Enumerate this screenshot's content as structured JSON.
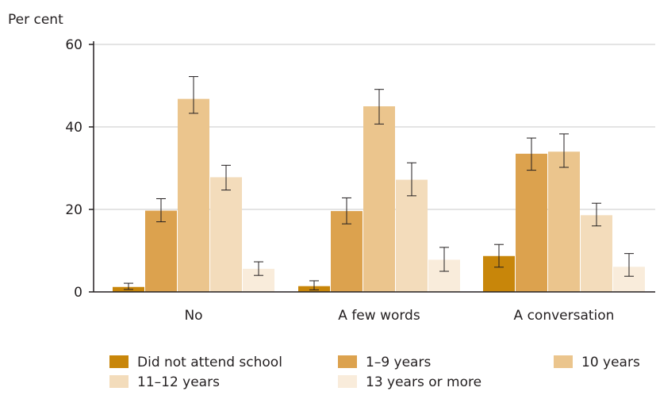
{
  "chart_data": {
    "type": "bar",
    "title": "",
    "xlabel": "",
    "ylabel": "Per cent",
    "ylim": [
      0,
      60
    ],
    "yticks": [
      0,
      20,
      40,
      60
    ],
    "grid": true,
    "legend_position": "bottom",
    "categories": [
      "No",
      "A few words",
      "A conversation"
    ],
    "series": [
      {
        "name": "Did not attend school",
        "color": "#c8860a",
        "values": [
          1.2,
          1.4,
          8.7
        ],
        "error_low": [
          0.6,
          0.5,
          6.0
        ],
        "error_high": [
          2.1,
          2.7,
          11.5
        ]
      },
      {
        "name": "1–9 years",
        "color": "#dca24e",
        "values": [
          19.7,
          19.6,
          33.5
        ],
        "error_low": [
          17.0,
          16.5,
          29.5
        ],
        "error_high": [
          22.6,
          22.8,
          37.3
        ]
      },
      {
        "name": "10 years",
        "color": "#ebc58d",
        "values": [
          46.8,
          45.0,
          34.0
        ],
        "error_low": [
          43.3,
          40.7,
          30.2
        ],
        "error_high": [
          52.2,
          49.1,
          38.3
        ]
      },
      {
        "name": "11–12 years",
        "color": "#f3dcbb",
        "values": [
          27.8,
          27.2,
          18.6
        ],
        "error_low": [
          24.7,
          23.3,
          16.0
        ],
        "error_high": [
          30.7,
          31.3,
          21.5
        ]
      },
      {
        "name": "13 years or more",
        "color": "#f9ecdb",
        "values": [
          5.6,
          7.8,
          6.1
        ],
        "error_low": [
          4.0,
          5.0,
          3.8
        ],
        "error_high": [
          7.3,
          10.8,
          9.3
        ]
      }
    ]
  }
}
